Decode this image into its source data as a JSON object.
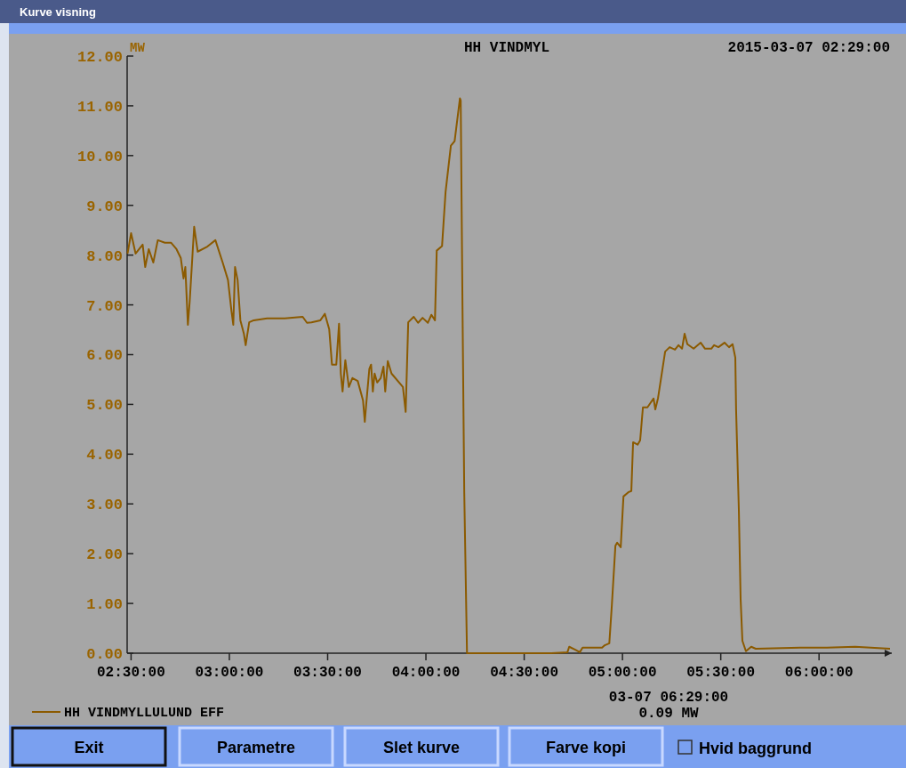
{
  "chart_data": {
    "type": "line",
    "title": "HH VINDMYL",
    "ylabel": "MW",
    "annotations": [
      "2015-03-07 02:29:00",
      "03-07 06:29:00",
      "0.09 MW",
      "Kurve visning",
      "Exit",
      "Parametre",
      "Slet kurve",
      "Farve kopi",
      "Hvid baggrund"
    ],
    "xlim": [
      2.48,
      6.37
    ],
    "ylim": [
      0,
      12
    ],
    "xticks": [
      {
        "value": 2.5,
        "label": "02:30:00"
      },
      {
        "value": 3,
        "label": "03:00:00"
      },
      {
        "value": 3.5,
        "label": "03:30:00"
      },
      {
        "value": 4,
        "label": "04:00:00"
      },
      {
        "value": 4.5,
        "label": "04:30:00"
      },
      {
        "value": 5,
        "label": "05:00:00"
      },
      {
        "value": 5.5,
        "label": "05:30:00"
      },
      {
        "value": 6,
        "label": "06:00:00"
      }
    ],
    "yticks": [
      {
        "value": 0,
        "label": "0.00"
      },
      {
        "value": 1,
        "label": "1.00"
      },
      {
        "value": 2,
        "label": "2.00"
      },
      {
        "value": 3,
        "label": "3.00"
      },
      {
        "value": 4,
        "label": "4.00"
      },
      {
        "value": 5,
        "label": "5.00"
      },
      {
        "value": 6,
        "label": "6.00"
      },
      {
        "value": 7,
        "label": "7.00"
      },
      {
        "value": 8,
        "label": "8.00"
      },
      {
        "value": 9,
        "label": "9.00"
      },
      {
        "value": 10,
        "label": "10.00"
      },
      {
        "value": 11,
        "label": "11.00"
      },
      {
        "value": 12,
        "label": "12.00"
      }
    ],
    "grid": false,
    "legend": "bottom left",
    "marker": "none",
    "line_style": "solid",
    "series": [
      {
        "name": "HH VINDMYLLULUND EFF",
        "color": "#8b5a00",
        "x": [
          2.482,
          2.5,
          2.523,
          2.559,
          2.572,
          2.59,
          2.613,
          2.636,
          2.672,
          2.703,
          2.731,
          2.753,
          2.767,
          2.776,
          2.789,
          2.798,
          2.821,
          2.839,
          2.884,
          2.929,
          2.966,
          2.993,
          3.011,
          3.02,
          3.029,
          3.042,
          3.056,
          3.074,
          3.083,
          3.101,
          3.124,
          3.192,
          3.282,
          3.373,
          3.395,
          3.418,
          3.463,
          3.486,
          3.508,
          3.522,
          3.544,
          3.558,
          3.567,
          3.576,
          3.59,
          3.608,
          3.626,
          3.653,
          3.68,
          3.689,
          3.698,
          3.712,
          3.721,
          3.73,
          3.739,
          3.752,
          3.77,
          3.784,
          3.793,
          3.806,
          3.825,
          3.883,
          3.897,
          3.91,
          3.938,
          3.96,
          3.983,
          4.01,
          4.028,
          4.046,
          4.055,
          4.082,
          4.1,
          4.127,
          4.146,
          4.173,
          4.177,
          4.186,
          4.195,
          4.209,
          4.254,
          4.638,
          4.72,
          4.729,
          4.76,
          4.783,
          4.797,
          4.896,
          4.91,
          4.933,
          4.946,
          4.964,
          4.973,
          4.991,
          5.005,
          5.032,
          5.045,
          5.054,
          5.077,
          5.09,
          5.104,
          5.127,
          5.158,
          5.167,
          5.181,
          5.217,
          5.24,
          5.267,
          5.285,
          5.303,
          5.316,
          5.33,
          5.362,
          5.398,
          5.42,
          5.452,
          5.466,
          5.488,
          5.519,
          5.542,
          5.56,
          5.574,
          5.578,
          5.592,
          5.601,
          5.61,
          5.628,
          5.655,
          5.678,
          5.904,
          6.04,
          6.184,
          6.361
        ],
        "values": [
          8.03,
          8.44,
          8.03,
          8.21,
          7.76,
          8.12,
          7.85,
          8.3,
          8.25,
          8.25,
          8.12,
          7.94,
          7.53,
          7.76,
          6.6,
          7.05,
          8.57,
          8.07,
          8.16,
          8.3,
          7.85,
          7.5,
          6.87,
          6.6,
          7.76,
          7.5,
          6.69,
          6.42,
          6.19,
          6.65,
          6.69,
          6.73,
          6.73,
          6.76,
          6.64,
          6.65,
          6.69,
          6.82,
          6.51,
          5.8,
          5.8,
          6.62,
          5.62,
          5.26,
          5.89,
          5.35,
          5.53,
          5.47,
          5.08,
          4.65,
          5.08,
          5.71,
          5.8,
          5.26,
          5.62,
          5.44,
          5.53,
          5.76,
          5.26,
          5.87,
          5.62,
          5.35,
          4.85,
          6.65,
          6.76,
          6.64,
          6.74,
          6.64,
          6.8,
          6.69,
          8.09,
          8.18,
          9.27,
          10.2,
          10.29,
          11.15,
          11.11,
          6.99,
          3.24,
          0,
          0,
          0,
          0.02,
          0.13,
          0.07,
          0.02,
          0.11,
          0.11,
          0.16,
          0.2,
          0.97,
          2.16,
          2.22,
          2.13,
          3.15,
          3.24,
          3.26,
          4.24,
          4.19,
          4.28,
          4.94,
          4.94,
          5.12,
          4.9,
          5.13,
          6.06,
          6.15,
          6.1,
          6.19,
          6.12,
          6.42,
          6.21,
          6.12,
          6.24,
          6.12,
          6.12,
          6.19,
          6.15,
          6.24,
          6.15,
          6.21,
          5.94,
          4.9,
          2.88,
          1.09,
          0.25,
          0.04,
          0.13,
          0.09,
          0.11,
          0.11,
          0.13,
          0.09
        ]
      }
    ]
  }
}
